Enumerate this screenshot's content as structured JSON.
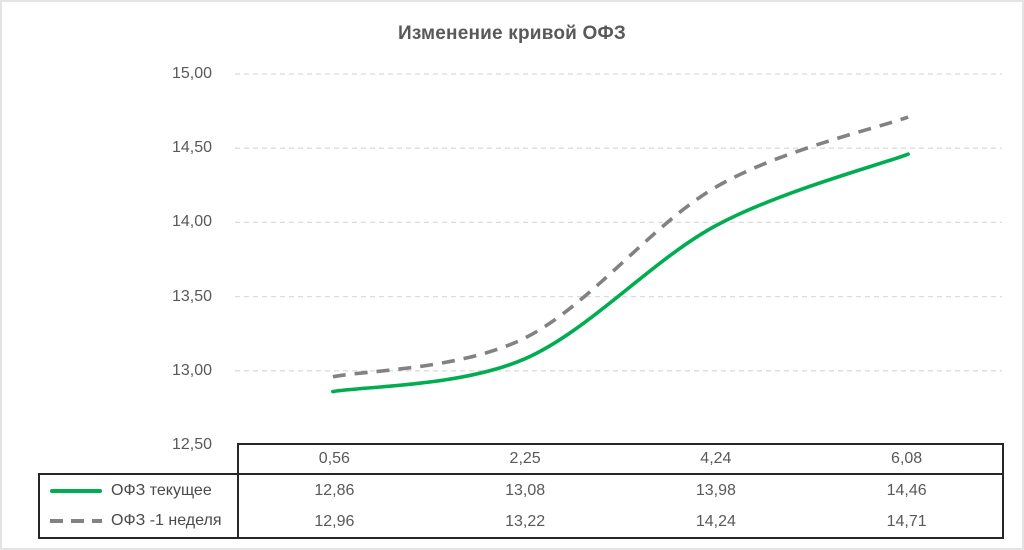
{
  "title": "Изменение кривой ОФЗ",
  "chart_data": {
    "type": "line",
    "title": "Изменение кривой ОФЗ",
    "categories": [
      "0,56",
      "2,25",
      "4,24",
      "6,08"
    ],
    "x_values": [
      0.56,
      2.25,
      4.24,
      6.08
    ],
    "series": [
      {
        "name": "ОФЗ текущее",
        "values": [
          12.86,
          13.08,
          13.98,
          14.46
        ],
        "color": "#00AD50",
        "style": "solid"
      },
      {
        "name": "ОФЗ -1 неделя",
        "values": [
          12.96,
          13.22,
          14.24,
          14.71
        ],
        "color": "#828282",
        "style": "dashed"
      }
    ],
    "ylim": [
      12.5,
      15.0
    ],
    "y_ticks": [
      15.0,
      14.5,
      14.0,
      13.5,
      13.0,
      12.5
    ],
    "y_tick_labels": [
      "15,00",
      "14,50",
      "14,00",
      "13,50",
      "13,00",
      "12,50"
    ],
    "grid": "horizontal-dashed",
    "grid_color": "#dcdcdc",
    "smooth": true,
    "legend_position": "bottom-table"
  },
  "table": {
    "header": [
      "0,56",
      "2,25",
      "4,24",
      "6,08"
    ],
    "rows": [
      {
        "label": "ОФЗ текущее",
        "values": [
          "12,86",
          "13,08",
          "13,98",
          "14,46"
        ]
      },
      {
        "label": "ОФЗ -1 неделя",
        "values": [
          "12,96",
          "13,22",
          "14,24",
          "14,71"
        ]
      }
    ]
  }
}
